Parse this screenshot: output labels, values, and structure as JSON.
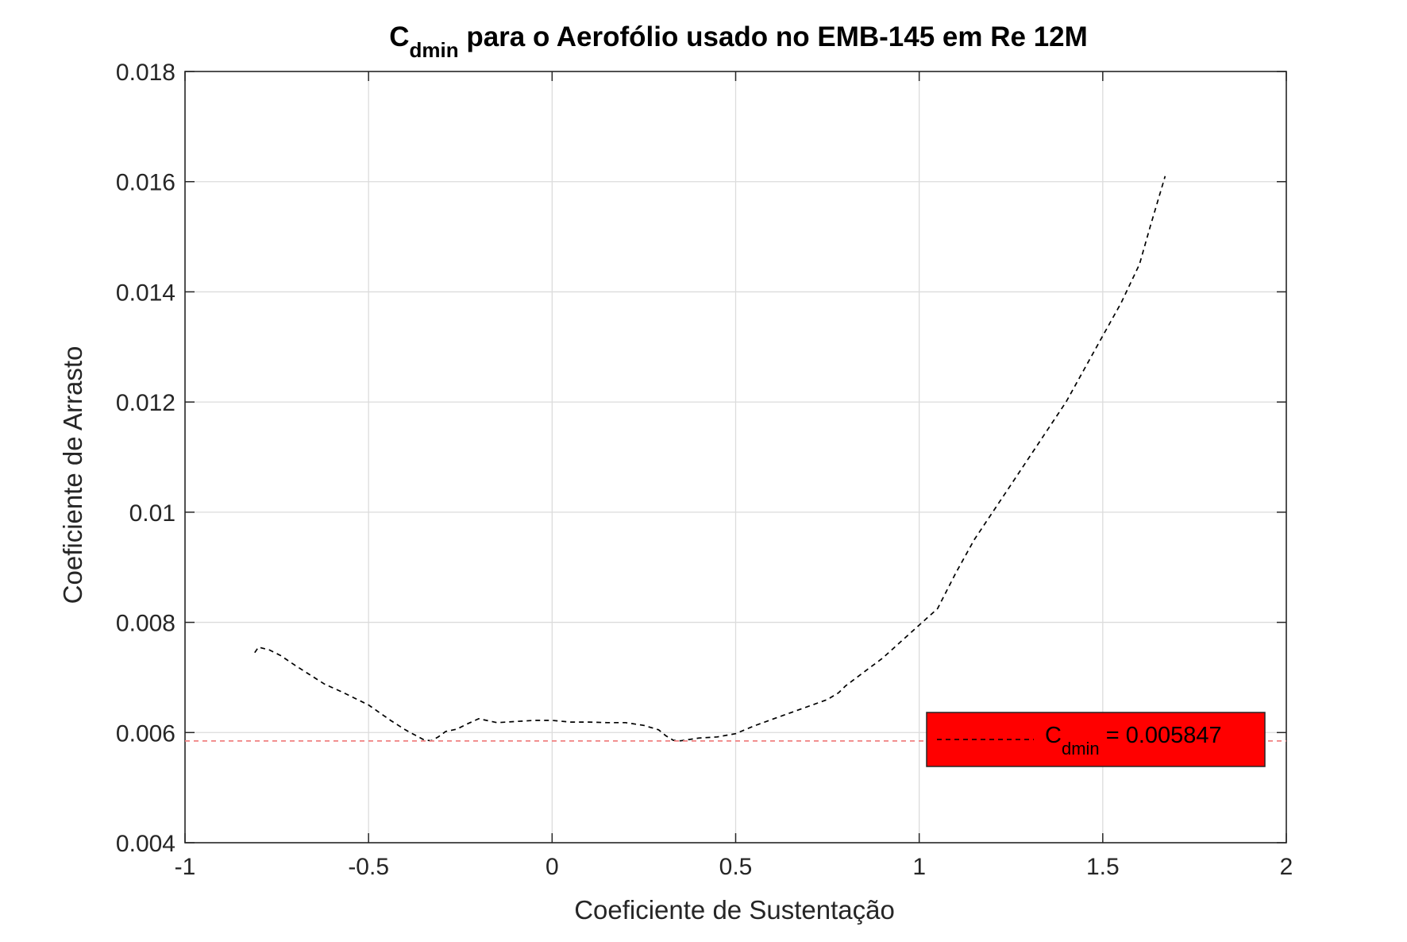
{
  "chart_data": {
    "type": "line",
    "title": {
      "base": "C",
      "subscript": "dmin",
      "rest": " para o Aerofólio usado no EMB-145 em Re 12M"
    },
    "xlabel": "Coeficiente de Sustentação",
    "ylabel": "Coeficiente de Arrasto",
    "xlim": [
      -1,
      2
    ],
    "ylim": [
      0.004,
      0.018
    ],
    "xticks": [
      -1,
      -0.5,
      0,
      0.5,
      1,
      1.5,
      2
    ],
    "xtick_labels": [
      "-1",
      "-0.5",
      "0",
      "0.5",
      "1",
      "1.5",
      "2"
    ],
    "yticks": [
      0.004,
      0.006,
      0.008,
      0.01,
      0.012,
      0.014,
      0.016,
      0.018
    ],
    "ytick_labels": [
      "0.004",
      "0.006",
      "0.008",
      "0.01",
      "0.012",
      "0.014",
      "0.016",
      "0.018"
    ],
    "grid": true,
    "series": [
      {
        "style": "dashed",
        "color": "#000000",
        "x": [
          -0.81,
          -0.8,
          -0.77,
          -0.74,
          -0.7,
          -0.66,
          -0.62,
          -0.57,
          -0.5,
          -0.44,
          -0.4,
          -0.35,
          -0.33,
          -0.31,
          -0.29,
          -0.26,
          -0.23,
          -0.2,
          -0.15,
          -0.1,
          -0.05,
          0,
          0.05,
          0.1,
          0.15,
          0.2,
          0.25,
          0.29,
          0.31,
          0.33,
          0.35,
          0.4,
          0.45,
          0.5,
          0.55,
          0.6,
          0.65,
          0.7,
          0.75,
          0.78,
          0.8,
          0.85,
          0.9,
          0.95,
          1,
          1.05,
          1.1,
          1.15,
          1.2,
          1.25,
          1.3,
          1.35,
          1.4,
          1.45,
          1.5,
          1.55,
          1.6,
          1.63,
          1.67
        ],
        "y": [
          0.00745,
          0.00755,
          0.0075,
          0.0074,
          0.00722,
          0.00705,
          0.00688,
          0.00673,
          0.0065,
          0.00622,
          0.00605,
          0.00587,
          0.00585,
          0.00592,
          0.00602,
          0.00606,
          0.00616,
          0.00625,
          0.00618,
          0.0062,
          0.00622,
          0.00622,
          0.00619,
          0.00619,
          0.00618,
          0.00618,
          0.00613,
          0.00605,
          0.00594,
          0.00586,
          0.00585,
          0.0059,
          0.00592,
          0.00598,
          0.00612,
          0.00624,
          0.00636,
          0.00648,
          0.0066,
          0.00672,
          0.00685,
          0.0071,
          0.00735,
          0.00765,
          0.00795,
          0.00825,
          0.0089,
          0.0095,
          0.01,
          0.0105,
          0.011,
          0.0115,
          0.012,
          0.0126,
          0.0132,
          0.0138,
          0.0145,
          0.0152,
          0.0161
        ]
      },
      {
        "style": "dashed",
        "color": "#f08080",
        "x": [
          -1,
          2
        ],
        "y": [
          0.005847,
          0.005847
        ]
      }
    ],
    "legend": {
      "location": "bottom-right",
      "background": "#ff0000",
      "base": "C",
      "subscript": "dmin",
      "rest": " = 0.005847"
    }
  }
}
